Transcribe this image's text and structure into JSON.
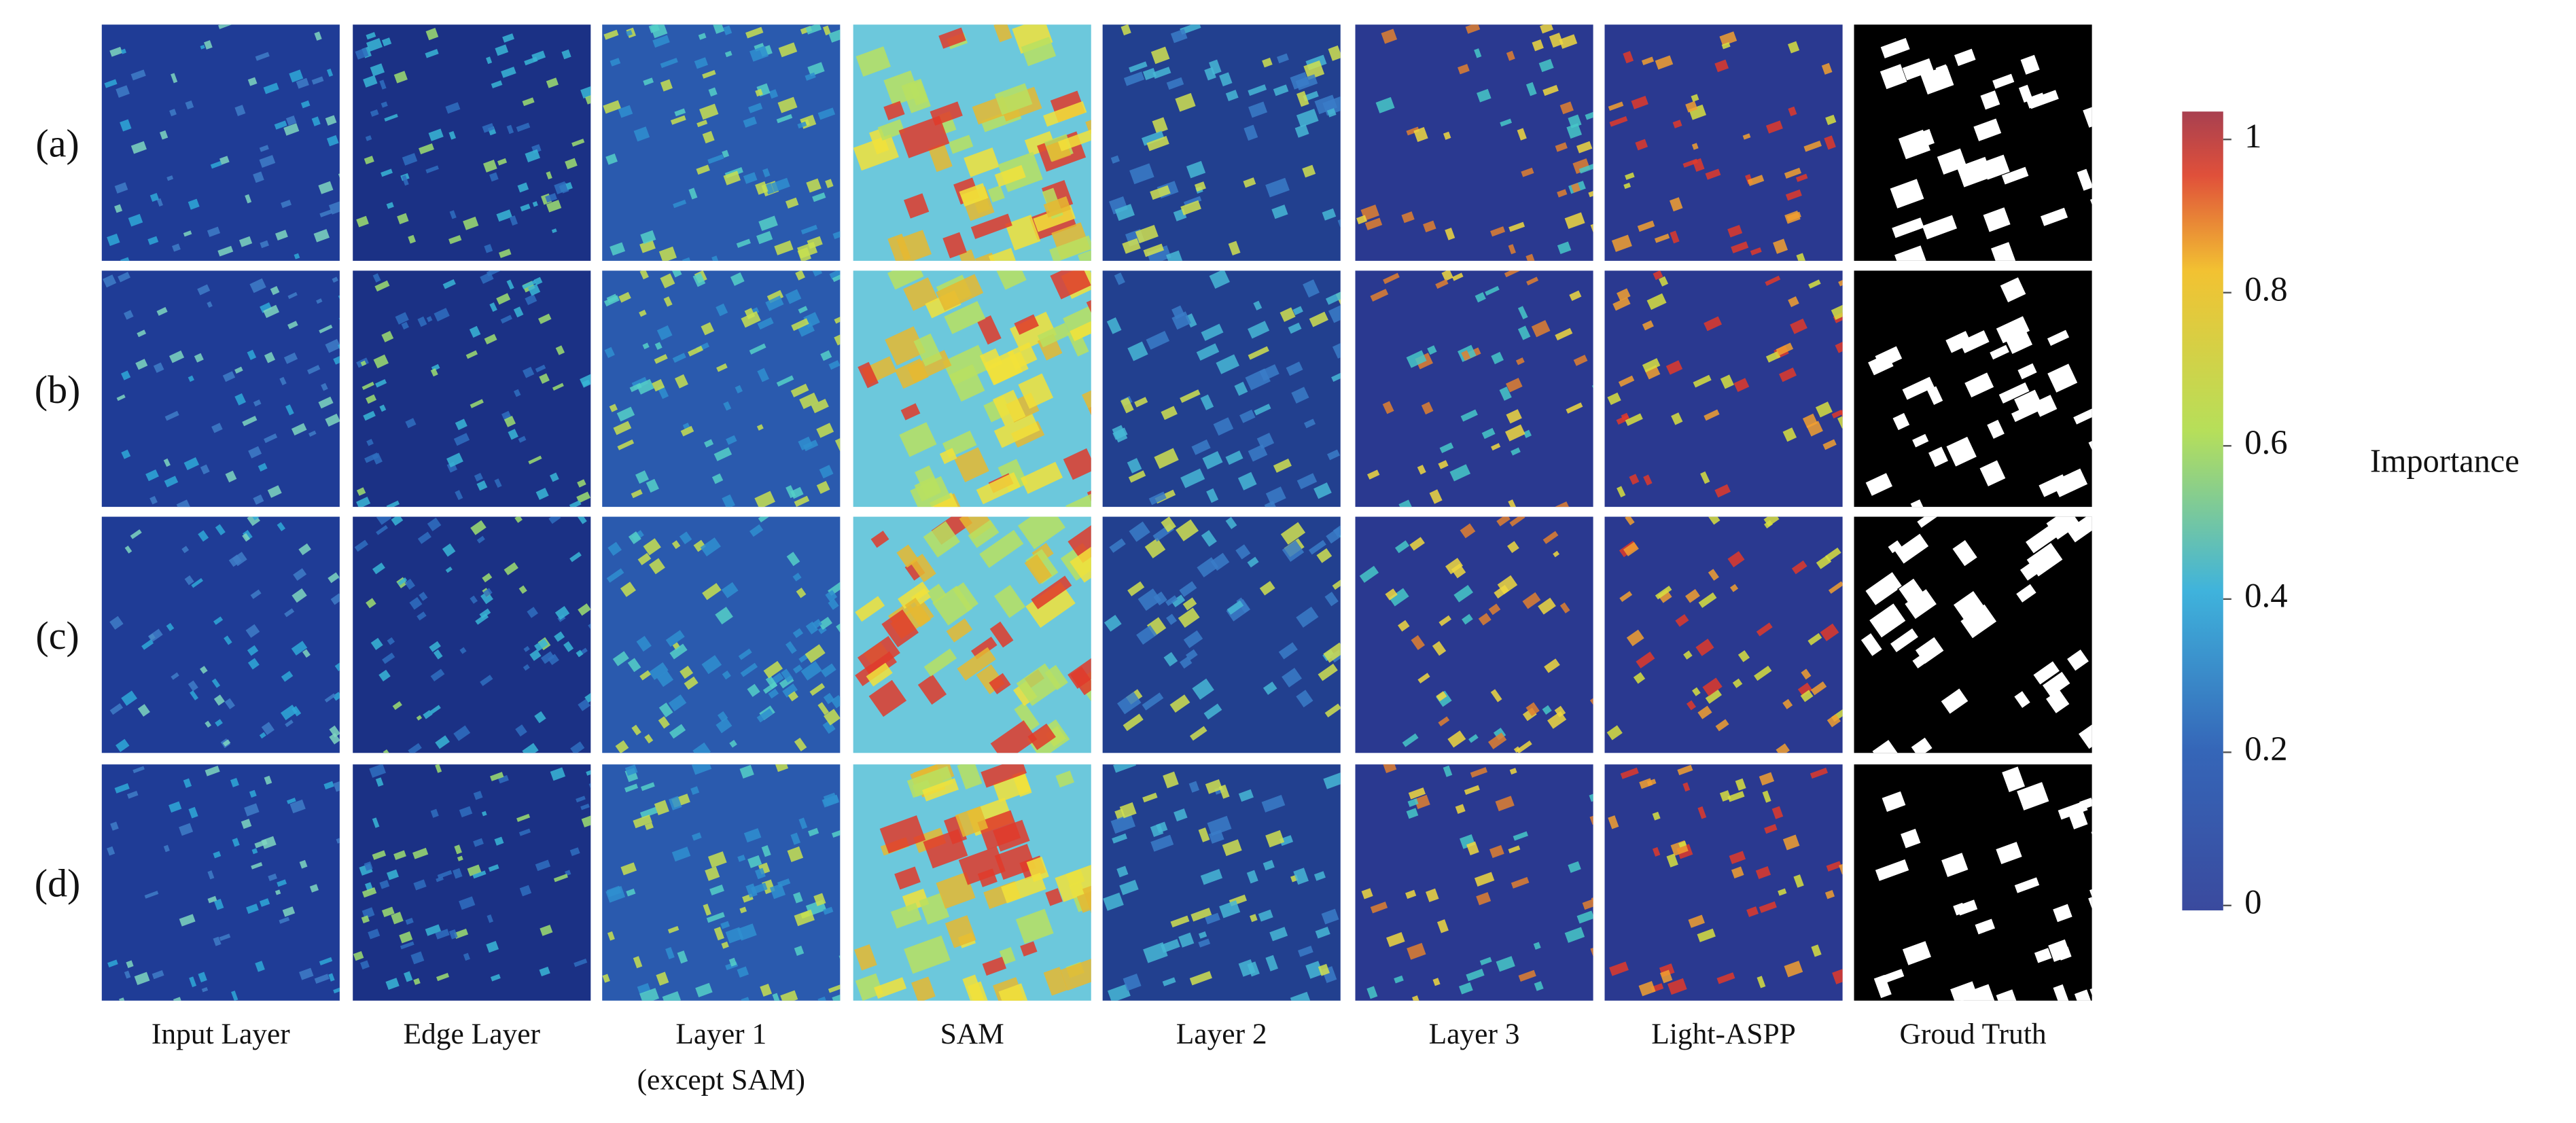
{
  "row_labels": [
    "(a)",
    "(b)",
    "(c)",
    "(d)"
  ],
  "columns": [
    {
      "label": "Input Layer"
    },
    {
      "label": "Edge Layer"
    },
    {
      "label": "Layer 1",
      "sublabel": "(except SAM)"
    },
    {
      "label": "SAM"
    },
    {
      "label": "Layer 2"
    },
    {
      "label": "Layer 3"
    },
    {
      "label": "Light-ASPP"
    },
    {
      "label": "Groud Truth"
    }
  ],
  "colorbar": {
    "label": "Importance",
    "lim": [
      0,
      1
    ],
    "ticks": [
      0,
      0.2,
      0.4,
      0.6,
      0.8,
      1
    ]
  }
}
